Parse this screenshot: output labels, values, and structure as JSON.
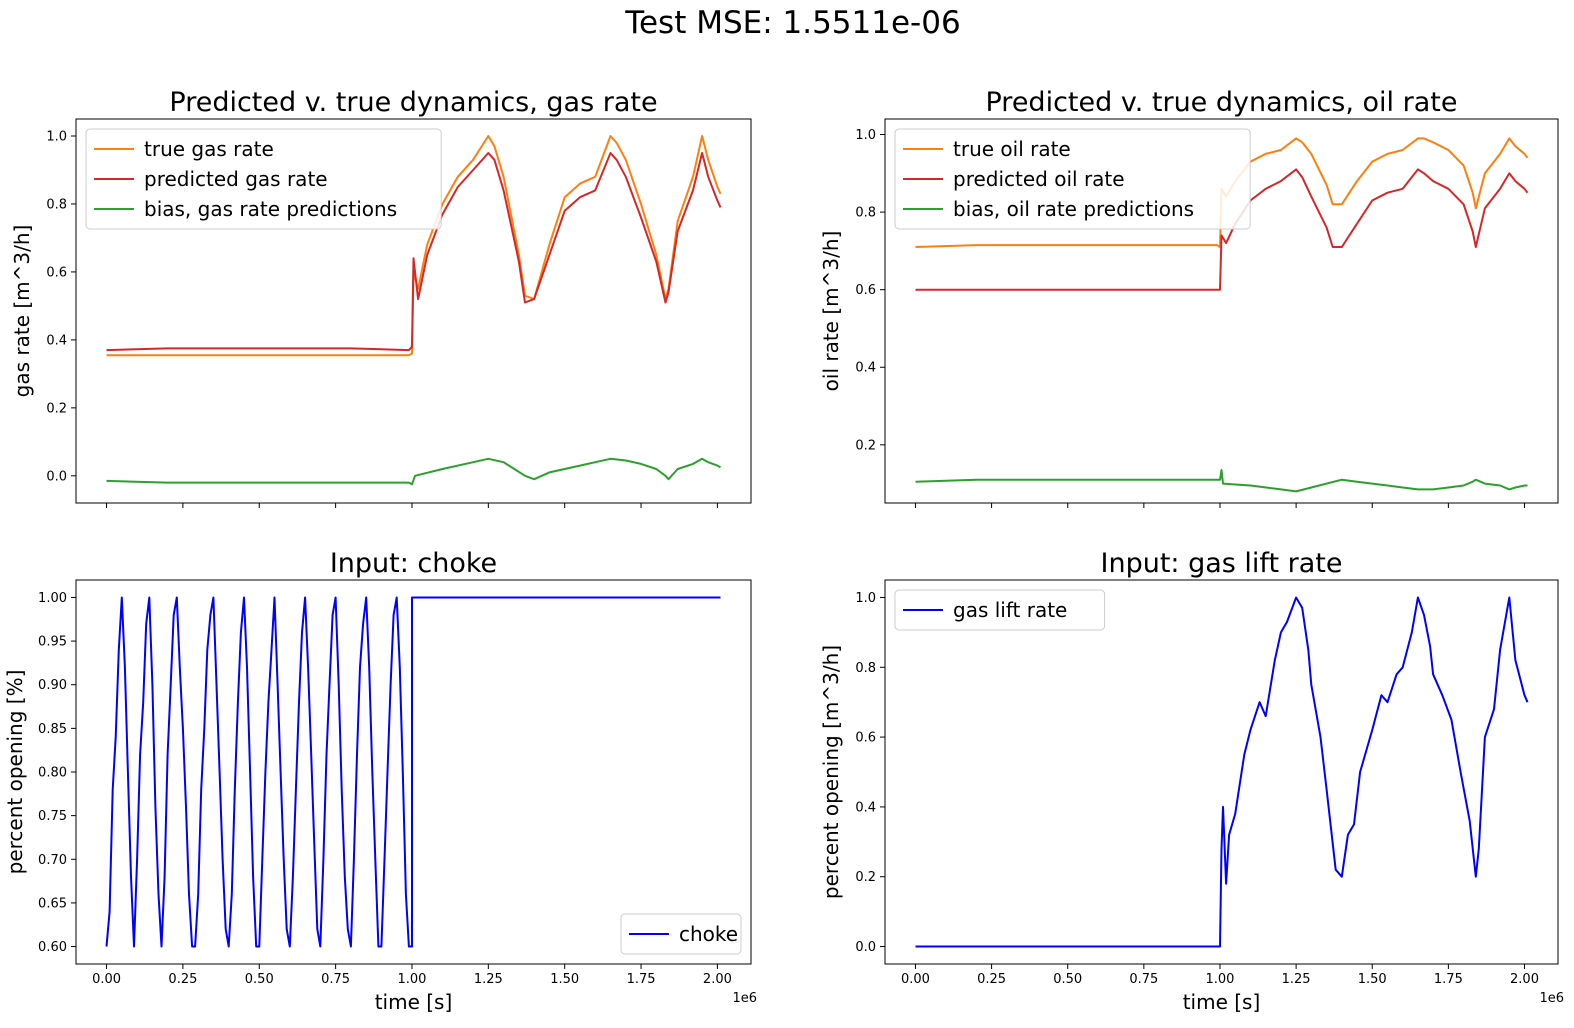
{
  "figure": {
    "suptitle": "Test MSE: 1.5511e-06"
  },
  "colors": {
    "true": "#ff7f0e",
    "predicted": "#d62728",
    "bias": "#2ca02c",
    "input": "#0000ff"
  },
  "chart_data": [
    {
      "id": "gas",
      "type": "line",
      "title": "Predicted v. true dynamics, gas rate",
      "xlabel": "",
      "ylabel": "gas rate [m^3/h]",
      "xlim": [
        -100000,
        2110000
      ],
      "ylim": [
        -0.08,
        1.05
      ],
      "xticks": [
        0,
        250000,
        500000,
        750000,
        1000000,
        1250000,
        1500000,
        1750000,
        2000000
      ],
      "xtick_labels": [],
      "yticks": [
        0.0,
        0.2,
        0.4,
        0.6,
        0.8,
        1.0
      ],
      "ytick_labels": [
        "0.0",
        "0.2",
        "0.4",
        "0.6",
        "0.8",
        "1.0"
      ],
      "legend": "top-left",
      "series": [
        {
          "name": "true gas rate",
          "color": "#ff7f0e",
          "x": [
            0,
            200000,
            400000,
            600000,
            800000,
            990000,
            1000000,
            1005000,
            1020000,
            1050000,
            1100000,
            1150000,
            1200000,
            1250000,
            1270000,
            1300000,
            1350000,
            1370000,
            1400000,
            1450000,
            1500000,
            1550000,
            1600000,
            1650000,
            1670000,
            1700000,
            1750000,
            1800000,
            1830000,
            1840000,
            1870000,
            1920000,
            1950000,
            1970000,
            2000000,
            2010000
          ],
          "y": [
            0.355,
            0.355,
            0.355,
            0.355,
            0.355,
            0.355,
            0.36,
            0.6,
            0.55,
            0.68,
            0.8,
            0.88,
            0.93,
            1.0,
            0.97,
            0.88,
            0.65,
            0.53,
            0.52,
            0.68,
            0.82,
            0.86,
            0.88,
            1.0,
            0.98,
            0.93,
            0.8,
            0.65,
            0.52,
            0.55,
            0.75,
            0.88,
            1.0,
            0.93,
            0.85,
            0.83
          ]
        },
        {
          "name": "predicted gas rate",
          "color": "#d62728",
          "x": [
            0,
            200000,
            400000,
            600000,
            800000,
            990000,
            1000000,
            1005000,
            1020000,
            1050000,
            1100000,
            1150000,
            1200000,
            1250000,
            1270000,
            1300000,
            1350000,
            1370000,
            1400000,
            1450000,
            1500000,
            1550000,
            1600000,
            1650000,
            1670000,
            1700000,
            1750000,
            1800000,
            1830000,
            1840000,
            1870000,
            1920000,
            1950000,
            1970000,
            2000000,
            2010000
          ],
          "y": [
            0.37,
            0.375,
            0.375,
            0.375,
            0.375,
            0.37,
            0.38,
            0.64,
            0.52,
            0.65,
            0.77,
            0.85,
            0.9,
            0.95,
            0.93,
            0.84,
            0.63,
            0.51,
            0.52,
            0.65,
            0.78,
            0.82,
            0.84,
            0.95,
            0.93,
            0.88,
            0.76,
            0.63,
            0.51,
            0.54,
            0.72,
            0.84,
            0.95,
            0.88,
            0.81,
            0.79
          ]
        },
        {
          "name": "bias, gas rate predictions",
          "color": "#2ca02c",
          "x": [
            0,
            200000,
            400000,
            600000,
            800000,
            990000,
            1000000,
            1010000,
            1100000,
            1200000,
            1250000,
            1300000,
            1370000,
            1400000,
            1450000,
            1500000,
            1550000,
            1600000,
            1650000,
            1700000,
            1750000,
            1800000,
            1830000,
            1840000,
            1870000,
            1920000,
            1950000,
            1970000,
            2000000,
            2010000
          ],
          "y": [
            -0.015,
            -0.02,
            -0.02,
            -0.02,
            -0.02,
            -0.02,
            -0.025,
            0.0,
            0.02,
            0.04,
            0.05,
            0.04,
            0.0,
            -0.01,
            0.01,
            0.02,
            0.03,
            0.04,
            0.05,
            0.045,
            0.035,
            0.02,
            0.0,
            -0.01,
            0.02,
            0.035,
            0.05,
            0.04,
            0.03,
            0.025
          ]
        }
      ]
    },
    {
      "id": "oil",
      "type": "line",
      "title": "Predicted v. true dynamics, oil rate",
      "xlabel": "",
      "ylabel": "oil rate [m^3/h]",
      "xlim": [
        -100000,
        2110000
      ],
      "ylim": [
        0.05,
        1.04
      ],
      "xticks": [
        0,
        250000,
        500000,
        750000,
        1000000,
        1250000,
        1500000,
        1750000,
        2000000
      ],
      "xtick_labels": [],
      "yticks": [
        0.2,
        0.4,
        0.6,
        0.8,
        1.0
      ],
      "ytick_labels": [
        "0.2",
        "0.4",
        "0.6",
        "0.8",
        "1.0"
      ],
      "legend": "top-left",
      "series": [
        {
          "name": "true oil rate",
          "color": "#ff7f0e",
          "x": [
            0,
            200000,
            400000,
            600000,
            800000,
            990000,
            1000000,
            1005000,
            1020000,
            1050000,
            1100000,
            1150000,
            1200000,
            1250000,
            1270000,
            1300000,
            1350000,
            1370000,
            1400000,
            1450000,
            1500000,
            1550000,
            1600000,
            1650000,
            1670000,
            1700000,
            1750000,
            1800000,
            1830000,
            1840000,
            1870000,
            1920000,
            1950000,
            1970000,
            2000000,
            2010000
          ],
          "y": [
            0.71,
            0.715,
            0.715,
            0.715,
            0.715,
            0.715,
            0.71,
            0.86,
            0.84,
            0.88,
            0.93,
            0.95,
            0.96,
            0.99,
            0.98,
            0.95,
            0.87,
            0.82,
            0.82,
            0.88,
            0.93,
            0.95,
            0.96,
            0.99,
            0.99,
            0.98,
            0.96,
            0.92,
            0.85,
            0.81,
            0.9,
            0.95,
            0.99,
            0.97,
            0.95,
            0.94
          ]
        },
        {
          "name": "predicted oil rate",
          "color": "#d62728",
          "x": [
            0,
            200000,
            400000,
            600000,
            800000,
            990000,
            1000000,
            1005000,
            1020000,
            1050000,
            1100000,
            1150000,
            1200000,
            1250000,
            1270000,
            1300000,
            1350000,
            1370000,
            1400000,
            1450000,
            1500000,
            1550000,
            1600000,
            1650000,
            1670000,
            1700000,
            1750000,
            1800000,
            1830000,
            1840000,
            1870000,
            1920000,
            1950000,
            1970000,
            2000000,
            2010000
          ],
          "y": [
            0.6,
            0.6,
            0.6,
            0.6,
            0.6,
            0.6,
            0.6,
            0.74,
            0.72,
            0.77,
            0.83,
            0.86,
            0.88,
            0.91,
            0.89,
            0.84,
            0.76,
            0.71,
            0.71,
            0.77,
            0.83,
            0.85,
            0.86,
            0.91,
            0.9,
            0.88,
            0.86,
            0.82,
            0.75,
            0.71,
            0.81,
            0.86,
            0.9,
            0.88,
            0.86,
            0.85
          ]
        },
        {
          "name": "bias, oil rate predictions",
          "color": "#2ca02c",
          "x": [
            0,
            200000,
            400000,
            600000,
            800000,
            990000,
            1000000,
            1005000,
            1010000,
            1100000,
            1200000,
            1250000,
            1300000,
            1400000,
            1450000,
            1500000,
            1550000,
            1600000,
            1650000,
            1700000,
            1750000,
            1800000,
            1830000,
            1840000,
            1870000,
            1920000,
            1950000,
            1970000,
            2000000,
            2010000
          ],
          "y": [
            0.105,
            0.11,
            0.11,
            0.11,
            0.11,
            0.11,
            0.11,
            0.135,
            0.1,
            0.095,
            0.085,
            0.08,
            0.09,
            0.11,
            0.105,
            0.1,
            0.095,
            0.09,
            0.085,
            0.085,
            0.09,
            0.095,
            0.105,
            0.11,
            0.1,
            0.095,
            0.085,
            0.09,
            0.095,
            0.095
          ]
        }
      ]
    },
    {
      "id": "choke",
      "type": "line",
      "title": "Input: choke",
      "xlabel": "time [s]",
      "ylabel": "percent opening [%]",
      "xlim": [
        -100000,
        2110000
      ],
      "ylim": [
        0.58,
        1.02
      ],
      "xticks": [
        0,
        250000,
        500000,
        750000,
        1000000,
        1250000,
        1500000,
        1750000,
        2000000
      ],
      "xtick_labels": [
        "0.00",
        "0.25",
        "0.50",
        "0.75",
        "1.00",
        "1.25",
        "1.50",
        "1.75",
        "2.00"
      ],
      "x_offset_label": "1e6",
      "yticks": [
        0.6,
        0.65,
        0.7,
        0.75,
        0.8,
        0.85,
        0.9,
        0.95,
        1.0
      ],
      "ytick_labels": [
        "0.60",
        "0.65",
        "0.70",
        "0.75",
        "0.80",
        "0.85",
        "0.90",
        "0.95",
        "1.00"
      ],
      "legend": "bottom-right",
      "series": [
        {
          "name": "choke",
          "color": "#0000ff",
          "x": [
            0,
            10000,
            20000,
            30000,
            40000,
            50000,
            60000,
            70000,
            80000,
            90000,
            100000,
            110000,
            120000,
            130000,
            140000,
            150000,
            160000,
            170000,
            180000,
            190000,
            200000,
            210000,
            220000,
            230000,
            240000,
            250000,
            260000,
            270000,
            280000,
            290000,
            300000,
            310000,
            320000,
            330000,
            340000,
            350000,
            360000,
            370000,
            380000,
            390000,
            400000,
            410000,
            420000,
            430000,
            440000,
            450000,
            460000,
            470000,
            480000,
            490000,
            500000,
            510000,
            520000,
            530000,
            540000,
            550000,
            560000,
            570000,
            580000,
            590000,
            600000,
            610000,
            620000,
            630000,
            640000,
            650000,
            660000,
            670000,
            680000,
            690000,
            700000,
            710000,
            720000,
            730000,
            740000,
            750000,
            760000,
            770000,
            780000,
            790000,
            800000,
            810000,
            820000,
            830000,
            840000,
            850000,
            860000,
            870000,
            880000,
            890000,
            900000,
            910000,
            920000,
            930000,
            940000,
            950000,
            960000,
            970000,
            980000,
            990000,
            1000000,
            1000001,
            1010000,
            2010000
          ],
          "y": [
            0.6,
            0.64,
            0.78,
            0.84,
            0.94,
            1.0,
            0.92,
            0.8,
            0.68,
            0.6,
            0.7,
            0.82,
            0.88,
            0.97,
            1.0,
            0.9,
            0.76,
            0.66,
            0.6,
            0.68,
            0.82,
            0.9,
            0.98,
            1.0,
            0.92,
            0.85,
            0.76,
            0.66,
            0.6,
            0.6,
            0.66,
            0.78,
            0.85,
            0.94,
            0.98,
            1.0,
            0.9,
            0.8,
            0.7,
            0.62,
            0.6,
            0.66,
            0.78,
            0.88,
            0.96,
            1.0,
            0.92,
            0.8,
            0.68,
            0.6,
            0.6,
            0.7,
            0.8,
            0.88,
            0.94,
            1.0,
            0.9,
            0.8,
            0.7,
            0.62,
            0.6,
            0.68,
            0.78,
            0.88,
            0.96,
            1.0,
            0.92,
            0.82,
            0.72,
            0.62,
            0.6,
            0.7,
            0.82,
            0.9,
            0.98,
            1.0,
            0.9,
            0.78,
            0.68,
            0.62,
            0.6,
            0.7,
            0.82,
            0.92,
            0.97,
            1.0,
            0.92,
            0.8,
            0.7,
            0.6,
            0.6,
            0.7,
            0.8,
            0.9,
            0.98,
            1.0,
            0.92,
            0.8,
            0.66,
            0.6,
            0.6,
            1.0,
            1.0,
            1.0
          ]
        }
      ]
    },
    {
      "id": "gaslift",
      "type": "line",
      "title": "Input: gas lift rate",
      "xlabel": "time [s]",
      "ylabel": "percent opening [m^3/h]",
      "xlim": [
        -100000,
        2110000
      ],
      "ylim": [
        -0.05,
        1.05
      ],
      "xticks": [
        0,
        250000,
        500000,
        750000,
        1000000,
        1250000,
        1500000,
        1750000,
        2000000
      ],
      "xtick_labels": [
        "0.00",
        "0.25",
        "0.50",
        "0.75",
        "1.00",
        "1.25",
        "1.50",
        "1.75",
        "2.00"
      ],
      "x_offset_label": "1e6",
      "yticks": [
        0.0,
        0.2,
        0.4,
        0.6,
        0.8,
        1.0
      ],
      "ytick_labels": [
        "0.0",
        "0.2",
        "0.4",
        "0.6",
        "0.8",
        "1.0"
      ],
      "legend": "top-left",
      "series": [
        {
          "name": "gas lift rate",
          "color": "#0000ff",
          "x": [
            0,
            200000,
            400000,
            600000,
            800000,
            1000000,
            1005000,
            1010000,
            1020000,
            1030000,
            1050000,
            1080000,
            1100000,
            1130000,
            1150000,
            1180000,
            1200000,
            1220000,
            1250000,
            1270000,
            1290000,
            1300000,
            1330000,
            1350000,
            1380000,
            1400000,
            1420000,
            1440000,
            1460000,
            1500000,
            1530000,
            1550000,
            1580000,
            1600000,
            1630000,
            1650000,
            1670000,
            1690000,
            1700000,
            1730000,
            1760000,
            1790000,
            1820000,
            1840000,
            1850000,
            1870000,
            1900000,
            1920000,
            1950000,
            1970000,
            2000000,
            2010000
          ],
          "y": [
            0.0,
            0.0,
            0.0,
            0.0,
            0.0,
            0.0,
            0.28,
            0.4,
            0.18,
            0.32,
            0.38,
            0.55,
            0.62,
            0.7,
            0.66,
            0.82,
            0.9,
            0.93,
            1.0,
            0.97,
            0.85,
            0.75,
            0.6,
            0.45,
            0.22,
            0.2,
            0.32,
            0.35,
            0.5,
            0.62,
            0.72,
            0.7,
            0.78,
            0.8,
            0.9,
            1.0,
            0.95,
            0.86,
            0.78,
            0.72,
            0.65,
            0.5,
            0.36,
            0.2,
            0.28,
            0.6,
            0.68,
            0.85,
            1.0,
            0.82,
            0.72,
            0.7
          ]
        }
      ]
    }
  ]
}
